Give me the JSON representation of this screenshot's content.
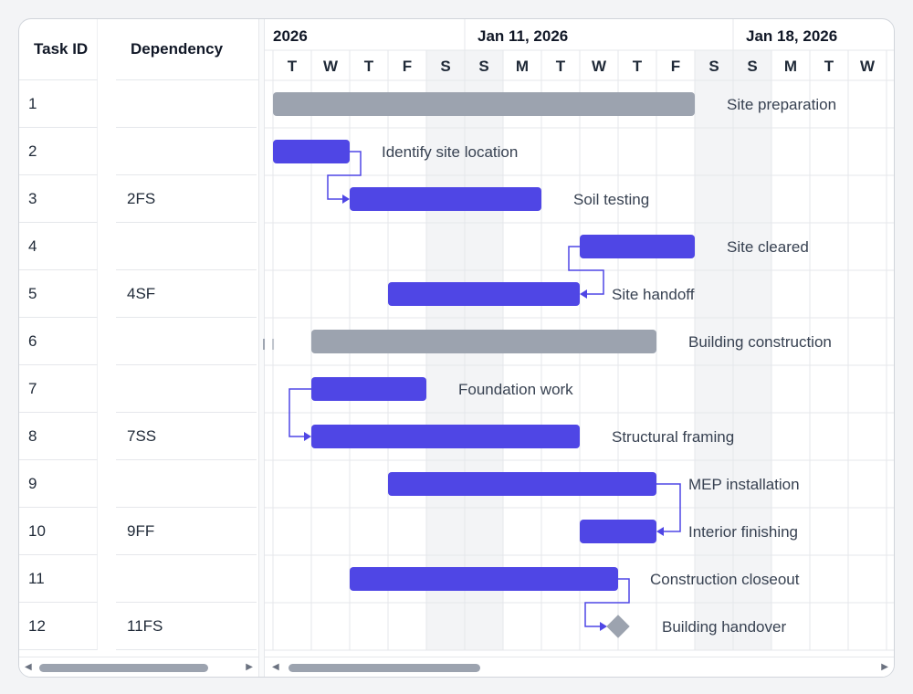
{
  "grid": {
    "columns": {
      "task_id": "Task ID",
      "dependency": "Dependency"
    },
    "rows": [
      {
        "id": "1",
        "dependency": ""
      },
      {
        "id": "2",
        "dependency": ""
      },
      {
        "id": "3",
        "dependency": "2FS"
      },
      {
        "id": "4",
        "dependency": ""
      },
      {
        "id": "5",
        "dependency": "4SF"
      },
      {
        "id": "6",
        "dependency": ""
      },
      {
        "id": "7",
        "dependency": ""
      },
      {
        "id": "8",
        "dependency": "7SS"
      },
      {
        "id": "9",
        "dependency": ""
      },
      {
        "id": "10",
        "dependency": "9FF"
      },
      {
        "id": "11",
        "dependency": ""
      },
      {
        "id": "12",
        "dependency": "11FS"
      }
    ]
  },
  "timeline": {
    "month_labels": [
      {
        "text": "2026",
        "from_day": 0
      },
      {
        "text": "Jan 11, 2026",
        "from_day": 5
      },
      {
        "text": "Jan 18, 2026",
        "from_day": 12
      }
    ],
    "days": [
      "T",
      "W",
      "T",
      "F",
      "S",
      "S",
      "M",
      "T",
      "W",
      "T",
      "F",
      "S",
      "S",
      "M",
      "T",
      "W"
    ],
    "weekend_indices": [
      4,
      5,
      11,
      12
    ]
  },
  "tasks": [
    {
      "row": 1,
      "name": "Site preparation",
      "start": 0,
      "end": 11,
      "kind": "summary"
    },
    {
      "row": 2,
      "name": "Identify site location",
      "start": 0,
      "end": 2,
      "kind": "task"
    },
    {
      "row": 3,
      "name": "Soil testing",
      "start": 2,
      "end": 7,
      "kind": "task"
    },
    {
      "row": 4,
      "name": "Site cleared",
      "start": 8,
      "end": 11,
      "kind": "task"
    },
    {
      "row": 5,
      "name": "Site handoff",
      "start": 3,
      "end": 8,
      "kind": "task"
    },
    {
      "row": 6,
      "name": "Building construction",
      "start": 1,
      "end": 10,
      "kind": "summary"
    },
    {
      "row": 7,
      "name": "Foundation work",
      "start": 1,
      "end": 4,
      "kind": "task"
    },
    {
      "row": 8,
      "name": "Structural framing",
      "start": 1,
      "end": 8,
      "kind": "task"
    },
    {
      "row": 9,
      "name": "MEP installation",
      "start": 3,
      "end": 10,
      "kind": "task"
    },
    {
      "row": 10,
      "name": "Interior finishing",
      "start": 8,
      "end": 10,
      "kind": "task"
    },
    {
      "row": 11,
      "name": "Construction closeout",
      "start": 2,
      "end": 9,
      "kind": "task"
    },
    {
      "row": 12,
      "name": "Building handover",
      "start": 9,
      "end": 9,
      "kind": "milestone"
    }
  ],
  "links": [
    {
      "from_row": 2,
      "to_row": 3,
      "type": "FS"
    },
    {
      "from_row": 4,
      "to_row": 5,
      "type": "SF"
    },
    {
      "from_row": 7,
      "to_row": 8,
      "type": "SS"
    },
    {
      "from_row": 9,
      "to_row": 10,
      "type": "FF"
    },
    {
      "from_row": 11,
      "to_row": 12,
      "type": "FS"
    }
  ],
  "colors": {
    "task_bar": "#4f46e5",
    "summary_bar": "#9ca3af",
    "milestone": "#9ca3af",
    "link": "#4f46e5",
    "weekend": "#f3f4f6",
    "grid_line": "#e5e7eb"
  },
  "scrollbars": {
    "left_thumb_fraction": 0.85,
    "right_thumb_fraction": 0.33
  }
}
